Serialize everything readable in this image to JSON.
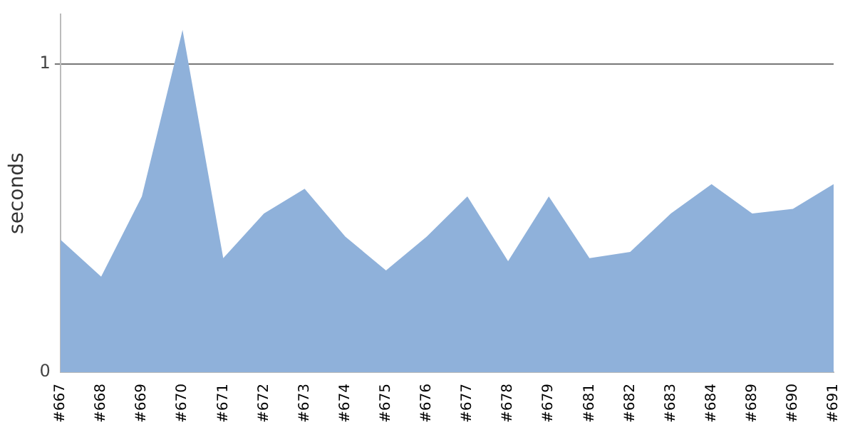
{
  "chart_data": {
    "type": "area",
    "ylabel": "seconds",
    "categories": [
      "#667",
      "#668",
      "#669",
      "#670",
      "#671",
      "#672",
      "#673",
      "#674",
      "#675",
      "#676",
      "#677",
      "#678",
      "#679",
      "#681",
      "#682",
      "#683",
      "#684",
      "#689",
      "#690",
      "#691"
    ],
    "series": [
      {
        "color": "#8fb1da",
        "values": [
          0.43,
          0.31,
          0.57,
          1.11,
          0.37,
          0.515,
          0.595,
          0.44,
          0.33,
          0.44,
          0.57,
          0.36,
          0.57,
          0.37,
          0.39,
          0.515,
          0.61,
          0.515,
          0.53,
          0.61
        ]
      }
    ],
    "ylim": [
      0,
      1.16
    ],
    "yticks": [
      0,
      1
    ],
    "grid": "y",
    "legend": false
  }
}
